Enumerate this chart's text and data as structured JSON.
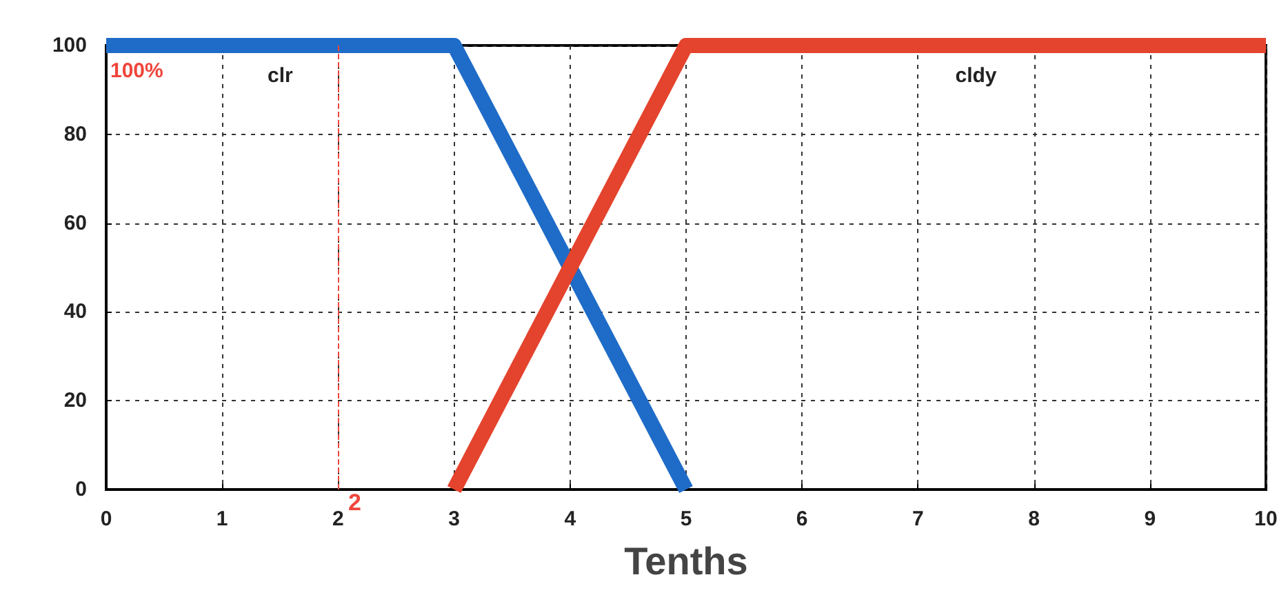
{
  "chart_data": {
    "type": "line",
    "xlabel": "Tenths",
    "series": [
      {
        "name": "clr",
        "color": "#1f6cc8",
        "x": [
          0,
          3,
          5
        ],
        "values": [
          100,
          100,
          0
        ]
      },
      {
        "name": "cldy",
        "color": "#e4432d",
        "x": [
          3,
          5,
          10
        ],
        "values": [
          0,
          100,
          100
        ]
      }
    ],
    "xlim": [
      0,
      10
    ],
    "xticks": [
      0,
      1,
      2,
      3,
      4,
      5,
      6,
      7,
      8,
      9,
      10
    ],
    "ylim": [
      0,
      100
    ],
    "yticks": [
      0,
      20,
      40,
      60,
      80,
      100
    ],
    "grid": true,
    "marker": "none",
    "line_style": "solid",
    "legend": false,
    "ref_lines": [
      {
        "axis": "x",
        "value": 2,
        "label": "2",
        "color": "#f0453a",
        "line_style": "dashed"
      }
    ],
    "annotations": [
      "100%"
    ]
  }
}
